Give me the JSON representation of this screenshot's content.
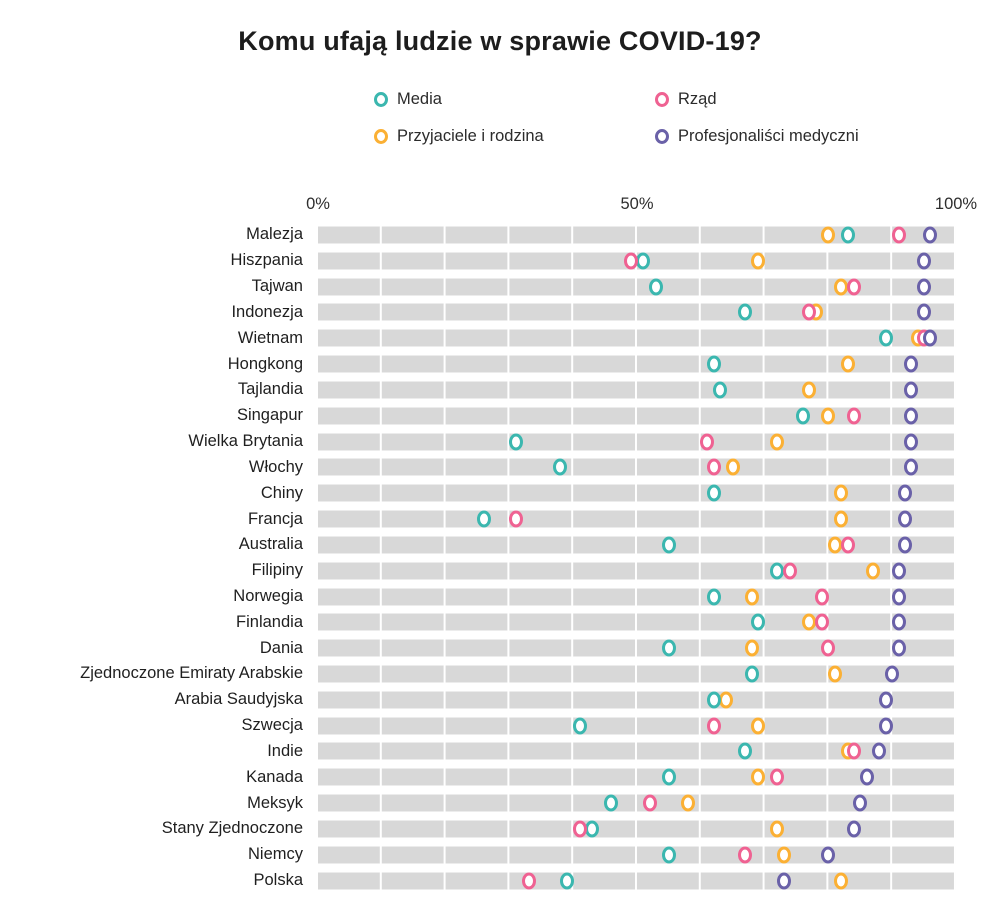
{
  "page": {
    "background": "#ffffff",
    "title": "Komu ufają ludzie w sprawie COVID-19?"
  },
  "legend": {
    "items": [
      {
        "key": "media",
        "label": "Media",
        "color": "#3bb7af"
      },
      {
        "key": "przyjaciele",
        "label": "Przyjaciele i rodzina",
        "color": "#fbb034"
      },
      {
        "key": "rzad",
        "label": "Rząd",
        "color": "#ef6292"
      },
      {
        "key": "medycy",
        "label": "Profesjonaliści medyczni",
        "color": "#6a61a8"
      }
    ]
  },
  "chart_data": {
    "type": "scatter",
    "subtype": "dot-plot",
    "title": "Komu ufają ludzie w sprawie COVID-19?",
    "xlabel": "",
    "ylabel": "",
    "x_axis": {
      "min": 0,
      "max": 100,
      "unit": "%",
      "ticks": [
        0,
        50,
        100
      ],
      "tick_labels": [
        "0%",
        "50%",
        "100%"
      ],
      "gridline_interval": 10,
      "grid": true
    },
    "bar_track_color": "#d8d8d8",
    "legend_position": "top",
    "series": [
      {
        "key": "media",
        "name": "Media",
        "color": "#3bb7af"
      },
      {
        "key": "rzad",
        "name": "Rząd",
        "color": "#ef6292"
      },
      {
        "key": "przyjaciele",
        "name": "Przyjaciele i rodzina",
        "color": "#fbb034"
      },
      {
        "key": "medycy",
        "name": "Profesjonaliści medyczni",
        "color": "#6a61a8"
      }
    ],
    "draw_order": [
      "przyjaciele",
      "media",
      "rzad",
      "medycy"
    ],
    "rows": [
      {
        "country": "Malezja",
        "values": {
          "media": 83,
          "rzad": 91,
          "przyjaciele": 80,
          "medycy": 96
        }
      },
      {
        "country": "Hiszpania",
        "values": {
          "media": 51,
          "rzad": 49,
          "przyjaciele": 69,
          "medycy": 95
        }
      },
      {
        "country": "Tajwan",
        "values": {
          "media": 53,
          "rzad": 84,
          "przyjaciele": 82,
          "medycy": 95
        }
      },
      {
        "country": "Indonezja",
        "values": {
          "media": 67,
          "rzad": 77,
          "przyjaciele": 78,
          "medycy": 95
        }
      },
      {
        "country": "Wietnam",
        "values": {
          "media": 89,
          "rzad": 95,
          "przyjaciele": 94,
          "medycy": 96
        }
      },
      {
        "country": "Hongkong",
        "values": {
          "media": 62,
          "rzad": null,
          "przyjaciele": 83,
          "medycy": 93
        }
      },
      {
        "country": "Tajlandia",
        "values": {
          "media": 63,
          "rzad": null,
          "przyjaciele": 77,
          "medycy": 93
        }
      },
      {
        "country": "Singapur",
        "values": {
          "media": 76,
          "rzad": 84,
          "przyjaciele": 80,
          "medycy": 93
        }
      },
      {
        "country": "Wielka Brytania",
        "values": {
          "media": 31,
          "rzad": 61,
          "przyjaciele": 72,
          "medycy": 93
        }
      },
      {
        "country": "Włochy",
        "values": {
          "media": 38,
          "rzad": 62,
          "przyjaciele": 65,
          "medycy": 93
        }
      },
      {
        "country": "Chiny",
        "values": {
          "media": 62,
          "rzad": null,
          "przyjaciele": 82,
          "medycy": 92
        }
      },
      {
        "country": "Francja",
        "values": {
          "media": 26,
          "rzad": 31,
          "przyjaciele": 82,
          "medycy": 92
        }
      },
      {
        "country": "Australia",
        "values": {
          "media": 55,
          "rzad": 83,
          "przyjaciele": 81,
          "medycy": 92
        }
      },
      {
        "country": "Filipiny",
        "values": {
          "media": 72,
          "rzad": 74,
          "przyjaciele": 87,
          "medycy": 91
        }
      },
      {
        "country": "Norwegia",
        "values": {
          "media": 62,
          "rzad": 79,
          "przyjaciele": 68,
          "medycy": 91
        }
      },
      {
        "country": "Finlandia",
        "values": {
          "media": 69,
          "rzad": 79,
          "przyjaciele": 77,
          "medycy": 91
        }
      },
      {
        "country": "Dania",
        "values": {
          "media": 55,
          "rzad": 80,
          "przyjaciele": 68,
          "medycy": 91
        }
      },
      {
        "country": "Zjednoczone Emiraty Arabskie",
        "values": {
          "media": 68,
          "rzad": null,
          "przyjaciele": 81,
          "medycy": 90
        }
      },
      {
        "country": "Arabia Saudyjska",
        "values": {
          "media": 62,
          "rzad": null,
          "przyjaciele": 64,
          "medycy": 89
        }
      },
      {
        "country": "Szwecja",
        "values": {
          "media": 41,
          "rzad": 62,
          "przyjaciele": 69,
          "medycy": 89
        }
      },
      {
        "country": "Indie",
        "values": {
          "media": 67,
          "rzad": 84,
          "przyjaciele": 83,
          "medycy": 88
        }
      },
      {
        "country": "Kanada",
        "values": {
          "media": 55,
          "rzad": 72,
          "przyjaciele": 69,
          "medycy": 86
        }
      },
      {
        "country": "Meksyk",
        "values": {
          "media": 46,
          "rzad": 52,
          "przyjaciele": 58,
          "medycy": 85
        }
      },
      {
        "country": "Stany Zjednoczone",
        "values": {
          "media": 43,
          "rzad": 41,
          "przyjaciele": 72,
          "medycy": 84
        }
      },
      {
        "country": "Niemcy",
        "values": {
          "media": 55,
          "rzad": 67,
          "przyjaciele": 73,
          "medycy": 80
        }
      },
      {
        "country": "Polska",
        "values": {
          "media": 39,
          "rzad": 33,
          "przyjaciele": 82,
          "medycy": 73
        }
      }
    ]
  }
}
